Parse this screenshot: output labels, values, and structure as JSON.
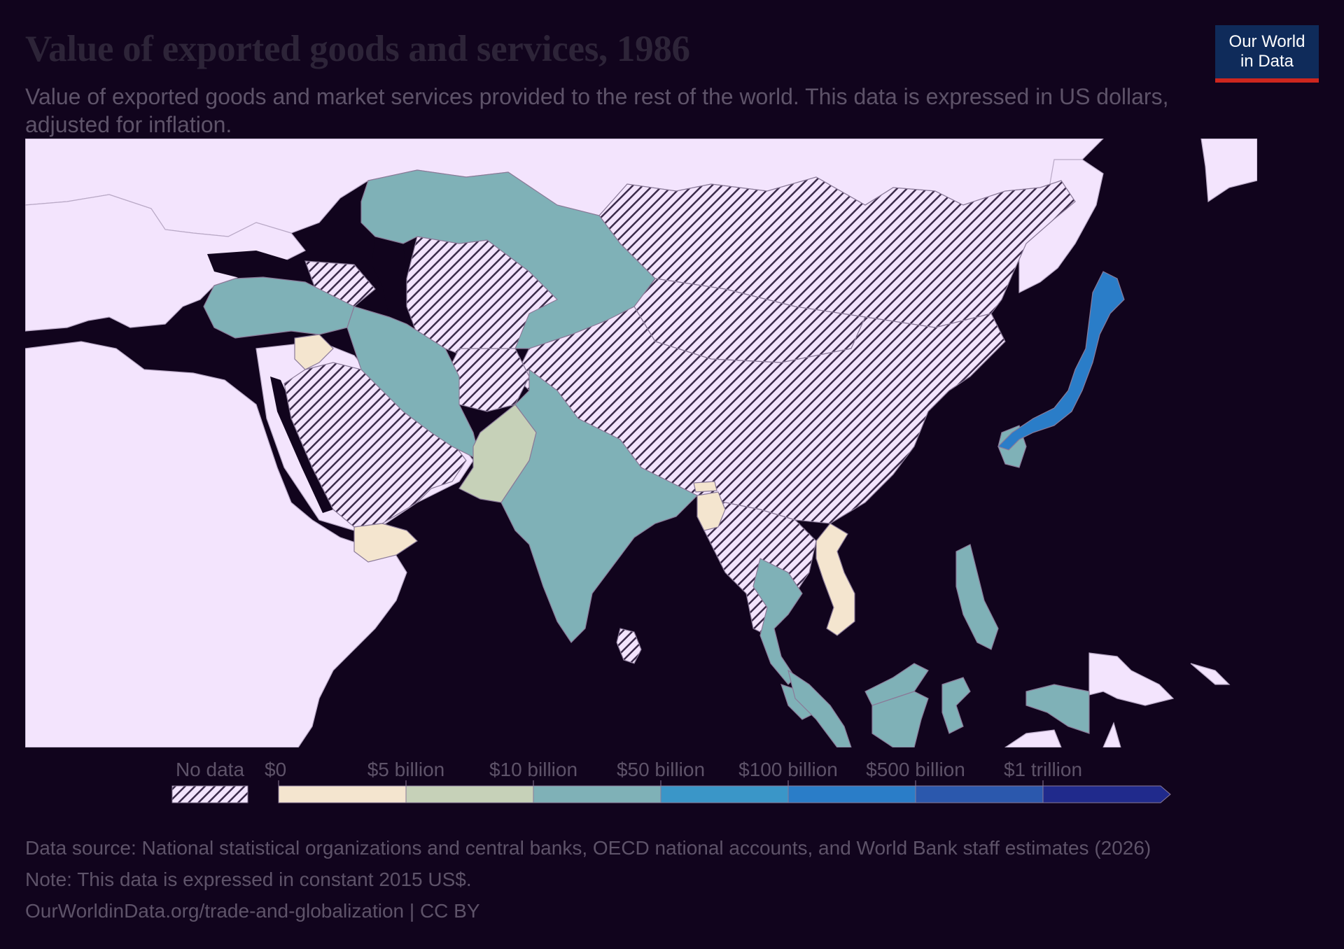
{
  "header": {
    "title": "Value of exported goods and services, 1986",
    "subtitle": "Value of exported goods and market services provided to the rest of the world. This data is expressed in US dollars, adjusted for inflation."
  },
  "logo": {
    "line1": "Our World",
    "line2": "in Data",
    "background": "#0f2b5a",
    "accent": "#ce261e"
  },
  "legend": {
    "no_data_label": "No data",
    "no_data_pattern": "diagonal-hatch",
    "ticks": [
      "$0",
      "$5 billion",
      "$10 billion",
      "$50 billion",
      "$100 billion",
      "$500 billion",
      "$1 trillion"
    ],
    "bins": [
      {
        "color": "#f4e5cf"
      },
      {
        "color": "#c6d1b8"
      },
      {
        "color": "#7fb1b7"
      },
      {
        "color": "#3a96c8"
      },
      {
        "color": "#2a7dc8"
      },
      {
        "color": "#2b58ad"
      },
      {
        "color": "#202a8c"
      }
    ]
  },
  "map": {
    "region": "Asia",
    "year": "1986",
    "base_land_color": "#f3e4fd",
    "no_data_fill": "hatch",
    "countries": [
      {
        "name": "Kazakhstan",
        "bin": "$10 billion"
      },
      {
        "name": "Turkey",
        "bin": "$10 billion"
      },
      {
        "name": "Iran",
        "bin": "$10 billion"
      },
      {
        "name": "India",
        "bin": "$10 billion"
      },
      {
        "name": "Indonesia",
        "bin": "$10 billion"
      },
      {
        "name": "Malaysia",
        "bin": "$10 billion"
      },
      {
        "name": "Thailand",
        "bin": "$10 billion"
      },
      {
        "name": "Philippines",
        "bin": "$10 billion"
      },
      {
        "name": "South Korea",
        "bin": "$10 billion"
      },
      {
        "name": "Papua New Guinea",
        "bin": "$10 billion"
      },
      {
        "name": "Pakistan",
        "bin": "$5 billion"
      },
      {
        "name": "Japan",
        "bin": "$100 billion"
      },
      {
        "name": "Syria",
        "bin": "$0"
      },
      {
        "name": "Yemen",
        "bin": "$0"
      },
      {
        "name": "Vietnam",
        "bin": "$0"
      },
      {
        "name": "Bangladesh",
        "bin": "$0"
      },
      {
        "name": "Bhutan",
        "bin": "$0"
      },
      {
        "name": "China",
        "bin": "No data"
      },
      {
        "name": "Mongolia",
        "bin": "No data"
      },
      {
        "name": "Russia (Asian part)",
        "bin": "No data"
      },
      {
        "name": "Saudi Arabia",
        "bin": "No data"
      },
      {
        "name": "Iraq",
        "bin": "No data"
      },
      {
        "name": "Afghanistan",
        "bin": "No data"
      },
      {
        "name": "Turkmenistan",
        "bin": "No data"
      },
      {
        "name": "Uzbekistan",
        "bin": "No data"
      },
      {
        "name": "Myanmar",
        "bin": "No data"
      },
      {
        "name": "Laos",
        "bin": "No data"
      },
      {
        "name": "Cambodia",
        "bin": "No data"
      },
      {
        "name": "Sri Lanka",
        "bin": "No data"
      },
      {
        "name": "Oman",
        "bin": "No data"
      }
    ]
  },
  "footer": {
    "source": "Data source: National statistical organizations and central banks, OECD national accounts, and World Bank staff estimates (2026)",
    "note": "Note: This data is expressed in constant 2015 US$.",
    "url": "OurWorldinData.org/trade-and-globalization | CC BY"
  }
}
